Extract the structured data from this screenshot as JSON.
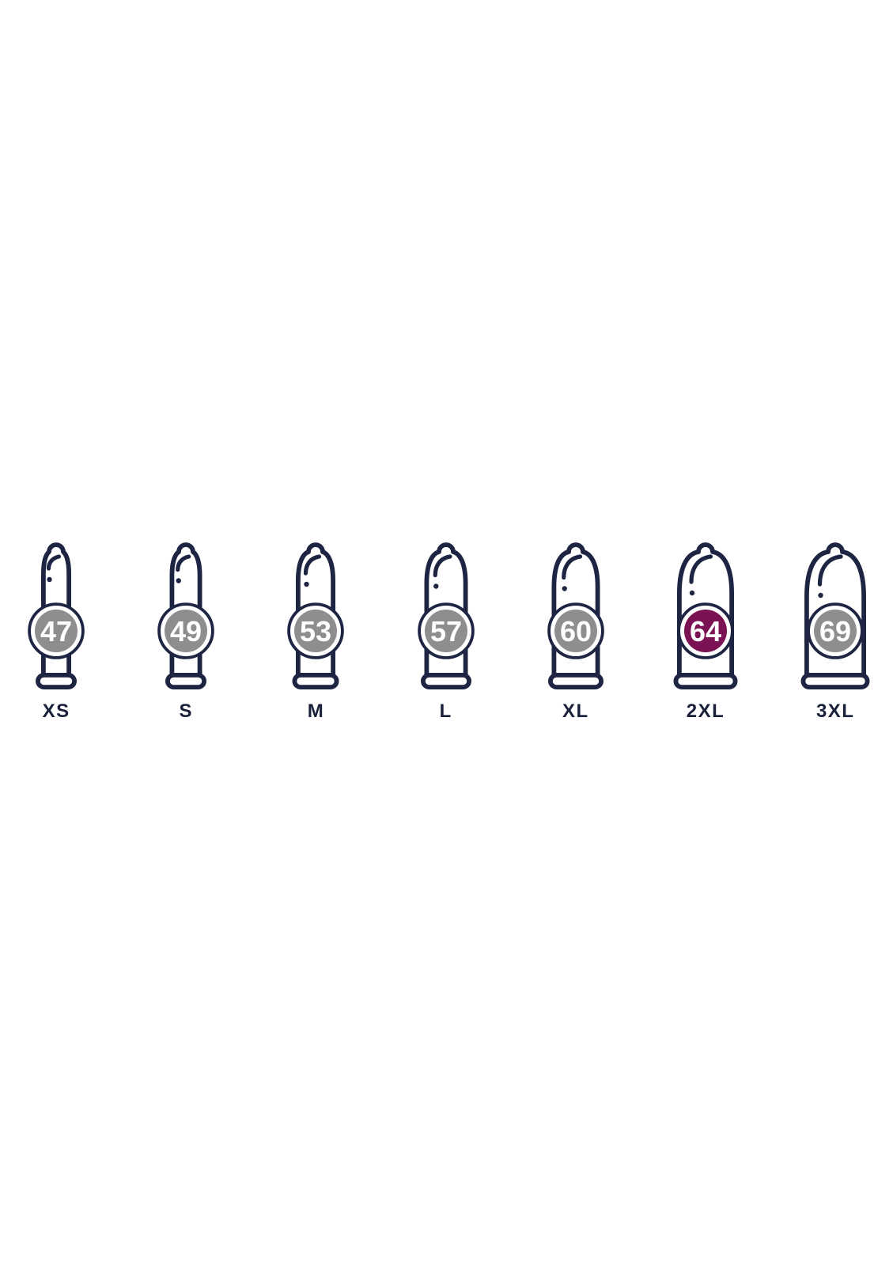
{
  "colors": {
    "outline": "#1d2543",
    "badge_gray": "#8e8e8e",
    "badge_highlight": "#7b1254",
    "badge_number": "#ffffff",
    "badge_ring": "#ffffff",
    "label_text": "#18203a",
    "background": "#ffffff"
  },
  "size_chart": {
    "sizes": [
      {
        "label": "XS",
        "nominal_width": "47",
        "body_width": 38,
        "highlighted": false
      },
      {
        "label": "S",
        "nominal_width": "49",
        "body_width": 41,
        "highlighted": false
      },
      {
        "label": "M",
        "nominal_width": "53",
        "body_width": 50,
        "highlighted": false
      },
      {
        "label": "L",
        "nominal_width": "57",
        "body_width": 55,
        "highlighted": false
      },
      {
        "label": "XL",
        "nominal_width": "60",
        "body_width": 61,
        "highlighted": false
      },
      {
        "label": "2XL",
        "nominal_width": "64",
        "body_width": 72,
        "highlighted": true
      },
      {
        "label": "3XL",
        "nominal_width": "69",
        "body_width": 78,
        "highlighted": false
      }
    ]
  }
}
